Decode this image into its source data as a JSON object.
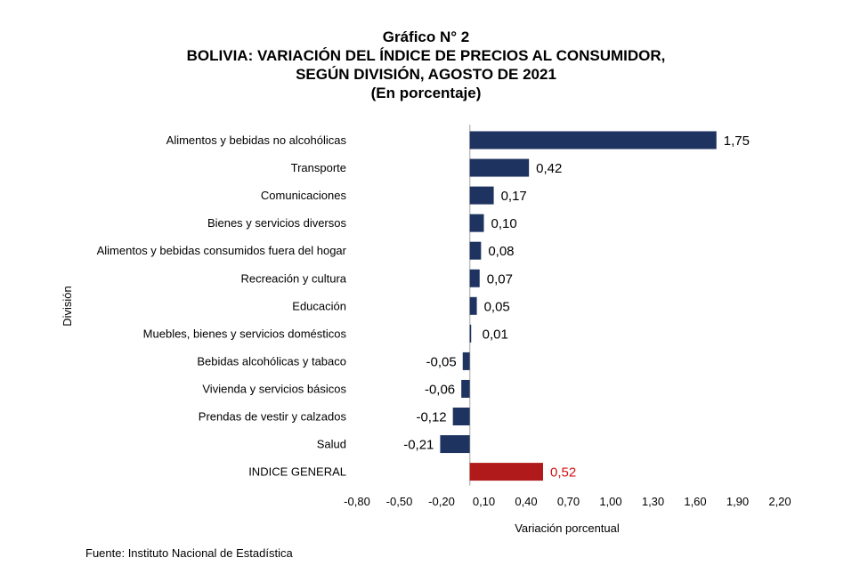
{
  "titles": {
    "line1": "Gráfico N° 2",
    "line2": "BOLIVIA: VARIACIÓN DEL ÍNDICE DE PRECIOS AL CONSUMIDOR,",
    "line3": "SEGÚN DIVISIÓN, AGOSTO DE 2021",
    "line4": "(En porcentaje)"
  },
  "footnote": "Fuente: Instituto Nacional de Estadística",
  "chart_data": {
    "type": "bar",
    "orientation": "horizontal",
    "title": "BOLIVIA: VARIACIÓN DEL ÍNDICE DE PRECIOS AL CONSUMIDOR, SEGÚN DIVISIÓN, AGOSTO DE 2021",
    "xlabel": "Variación porcentual",
    "ylabel": "División",
    "xlim": [
      -0.8,
      2.2
    ],
    "xticks": [
      "-0,80",
      "-0,50",
      "-0,20",
      "0,10",
      "0,40",
      "0,70",
      "1,00",
      "1,30",
      "1,60",
      "1,90",
      "2,20"
    ],
    "xtick_values": [
      -0.8,
      -0.5,
      -0.2,
      0.1,
      0.4,
      0.7,
      1.0,
      1.3,
      1.6,
      1.9,
      2.2
    ],
    "grid": false,
    "legend": "none",
    "categories": [
      "Alimentos y bebidas no alcohólicas",
      "Transporte",
      "Comunicaciones",
      "Bienes y servicios diversos",
      "Alimentos y bebidas consumidos fuera del hogar",
      "Recreación y cultura",
      "Educación",
      "Muebles, bienes y servicios domésticos",
      "Bebidas alcohólicas y tabaco",
      "Vivienda y servicios básicos",
      "Prendas de vestir y calzados",
      "Salud",
      "INDICE GENERAL"
    ],
    "values": [
      1.75,
      0.42,
      0.17,
      0.1,
      0.08,
      0.07,
      0.05,
      0.01,
      -0.05,
      -0.06,
      -0.12,
      -0.21,
      0.52
    ],
    "value_labels": [
      "1,75",
      "0,42",
      "0,17",
      "0,10",
      "0,08",
      "0,07",
      "0,05",
      "0,01",
      "-0,05",
      "-0,06",
      "-0,12",
      "-0,21",
      "0,52"
    ],
    "colors": {
      "bar": "#1f3360",
      "highlight_bar": "#b11a1a",
      "highlight_label": "#d01010",
      "axis": "#bfbfbf"
    },
    "highlight_category": "INDICE GENERAL"
  }
}
